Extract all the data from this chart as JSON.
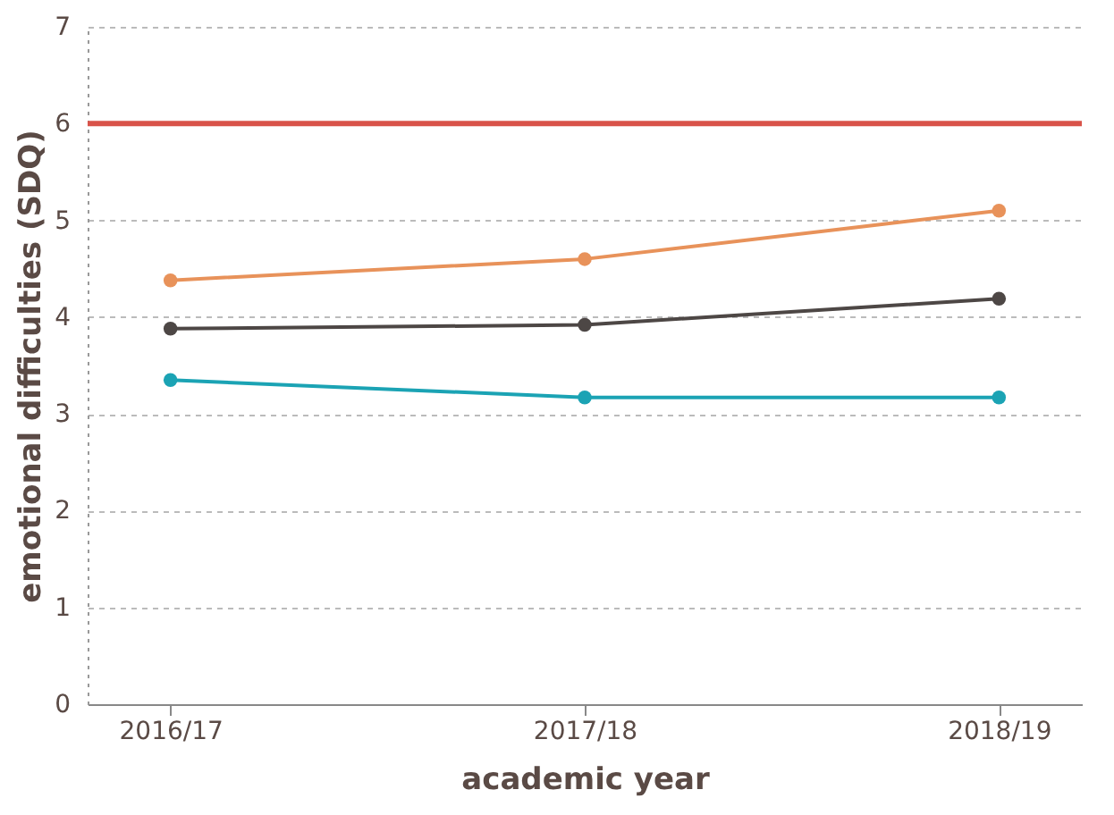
{
  "chart_data": {
    "type": "line",
    "xlabel": "academic year",
    "ylabel": "emotional difficulties (SDQ)",
    "categories": [
      "2016/17",
      "2017/18",
      "2018/19"
    ],
    "series": [
      {
        "color": "#e8925a",
        "values": [
          4.38,
          4.6,
          5.1
        ]
      },
      {
        "color": "#4d4745",
        "values": [
          3.88,
          3.92,
          4.19
        ]
      },
      {
        "color": "#1ba3b4",
        "values": [
          3.35,
          3.17,
          3.17
        ]
      }
    ],
    "ylim": [
      0,
      7
    ],
    "yticks": [
      0,
      1,
      2,
      3,
      4,
      5,
      6,
      7
    ],
    "grid": "y",
    "marker": "circle",
    "line_style": "solid",
    "ref_lines": [
      {
        "axis": "y",
        "value": 6,
        "color": "#d9534a"
      }
    ]
  }
}
